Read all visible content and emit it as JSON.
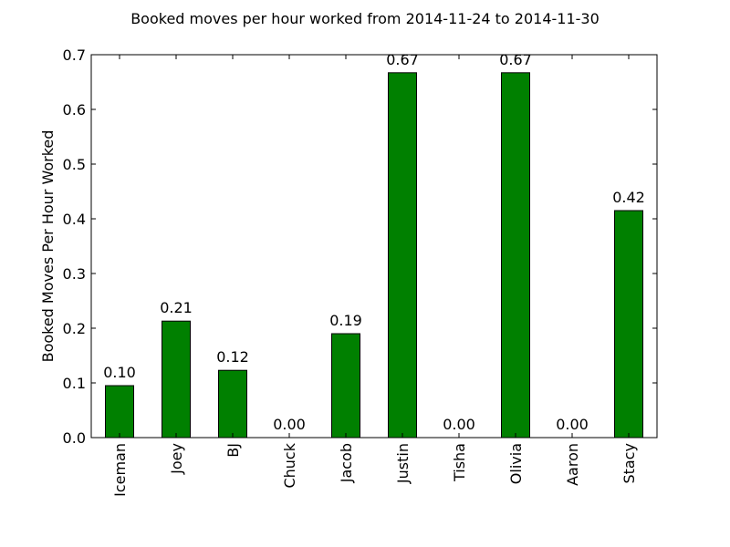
{
  "chart_data": {
    "type": "bar",
    "title": "Booked moves per hour worked from 2014-11-24 to 2014-11-30",
    "xlabel": "",
    "ylabel": "Booked Moves Per Hour Worked",
    "categories": [
      "Iceman",
      "Joey",
      "BJ",
      "Chuck",
      "Jacob",
      "Justin",
      "Tisha",
      "Olivia",
      "Aaron",
      "Stacy"
    ],
    "values": [
      0.095,
      0.213,
      0.123,
      0.0,
      0.19,
      0.667,
      0.0,
      0.667,
      0.0,
      0.415
    ],
    "data_labels": [
      "0.10",
      "0.21",
      "0.12",
      "0.00",
      "0.19",
      "0.67",
      "0.00",
      "0.67",
      "0.00",
      "0.42"
    ],
    "ylim": [
      0,
      0.7
    ],
    "yticks": [
      0.0,
      0.1,
      0.2,
      0.3,
      0.4,
      0.5,
      0.6,
      0.7
    ],
    "ytick_labels": [
      "0.0",
      "0.1",
      "0.2",
      "0.3",
      "0.4",
      "0.5",
      "0.6",
      "0.7"
    ],
    "grid": false,
    "legend": false,
    "colors": {
      "bar": "#008000",
      "bar_edge": "#000000",
      "axes": "#000000",
      "background": "#ffffff"
    }
  }
}
